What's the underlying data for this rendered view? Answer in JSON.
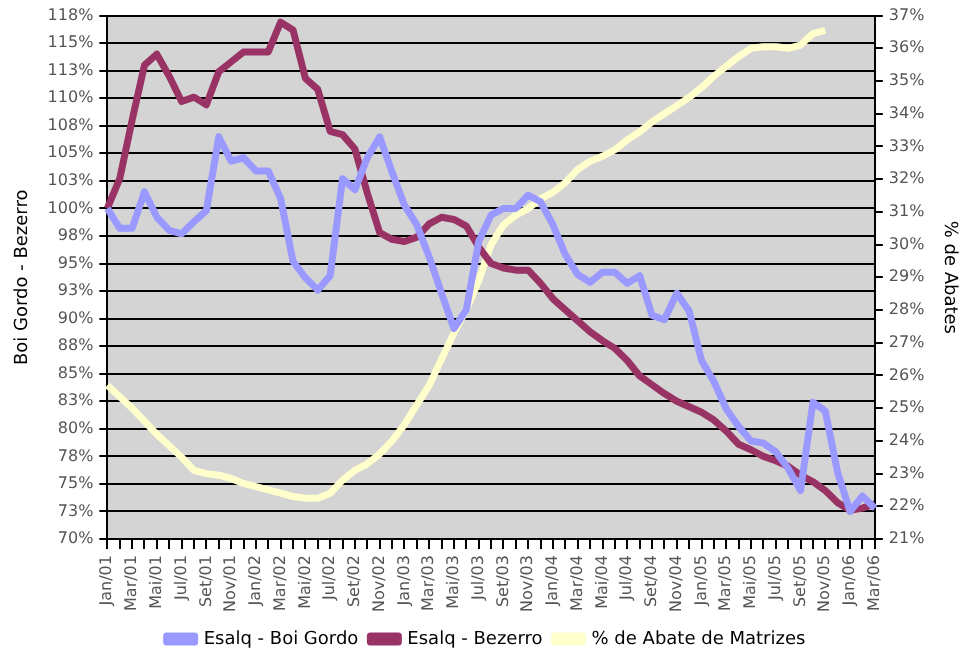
{
  "chart_data": {
    "type": "line",
    "ylabel": "Boi Gordo - Bezerro",
    "y2label": "% de Abates",
    "legend": "bottom",
    "grid": "y",
    "marker": "none",
    "line_style": "solid",
    "categories": [
      "Jan/01",
      null,
      "Mar/01",
      null,
      "Mai/01",
      null,
      "Jul/01",
      null,
      "Set/01",
      null,
      "Nov/01",
      null,
      "Jan/02",
      null,
      "Mar/02",
      null,
      "Mai/02",
      null,
      "Jul/02",
      null,
      "Set/02",
      null,
      "Nov/02",
      null,
      "Jan/03",
      null,
      "Mar/03",
      null,
      "Mai/03",
      null,
      "Jul/03",
      null,
      "Set/03",
      null,
      "Nov/03",
      null,
      "Jan/04",
      null,
      "Mar/04",
      null,
      "Mai/04",
      null,
      "Jul/04",
      null,
      "Set/04",
      null,
      "Nov/04",
      null,
      "Jan/05",
      null,
      "Mar/05",
      null,
      "Mai/05",
      null,
      "Jul/05",
      null,
      "Set/05",
      null,
      "Nov/05",
      null,
      "Jan/06",
      null,
      "Mar/06"
    ],
    "ylim": [
      70,
      117.5
    ],
    "yticks": [
      {
        "value": 70,
        "label": "70%"
      },
      {
        "value": 72.5,
        "label": "73%"
      },
      {
        "value": 75,
        "label": "75%"
      },
      {
        "value": 77.5,
        "label": "78%"
      },
      {
        "value": 80,
        "label": "80%"
      },
      {
        "value": 82.5,
        "label": "83%"
      },
      {
        "value": 85,
        "label": "85%"
      },
      {
        "value": 87.5,
        "label": "88%"
      },
      {
        "value": 90,
        "label": "90%"
      },
      {
        "value": 92.5,
        "label": "93%"
      },
      {
        "value": 95,
        "label": "95%"
      },
      {
        "value": 97.5,
        "label": "98%"
      },
      {
        "value": 100,
        "label": "100%"
      },
      {
        "value": 102.5,
        "label": "103%"
      },
      {
        "value": 105,
        "label": "105%"
      },
      {
        "value": 107.5,
        "label": "108%"
      },
      {
        "value": 110,
        "label": "110%"
      },
      {
        "value": 112.5,
        "label": "113%"
      },
      {
        "value": 115,
        "label": "115%"
      },
      {
        "value": 117.5,
        "label": "118%"
      }
    ],
    "y2lim": [
      21,
      37
    ],
    "y2ticks": [
      {
        "value": 21,
        "label": "21%"
      },
      {
        "value": 22,
        "label": "22%"
      },
      {
        "value": 23,
        "label": "23%"
      },
      {
        "value": 24,
        "label": "24%"
      },
      {
        "value": 25,
        "label": "25%"
      },
      {
        "value": 26,
        "label": "26%"
      },
      {
        "value": 27,
        "label": "27%"
      },
      {
        "value": 28,
        "label": "28%"
      },
      {
        "value": 29,
        "label": "29%"
      },
      {
        "value": 30,
        "label": "30%"
      },
      {
        "value": 31,
        "label": "31%"
      },
      {
        "value": 32,
        "label": "32%"
      },
      {
        "value": 33,
        "label": "33%"
      },
      {
        "value": 34,
        "label": "34%"
      },
      {
        "value": 35,
        "label": "35%"
      },
      {
        "value": 36,
        "label": "36%"
      },
      {
        "value": 37,
        "label": "37%"
      }
    ],
    "series": [
      {
        "name": "Esalq - Boi Gordo",
        "color": "#9999ff",
        "values": [
          100,
          98.2,
          98.2,
          101.5,
          99.2,
          98,
          97.7,
          98.8,
          99.8,
          106.5,
          104.3,
          104.6,
          103.4,
          103.4,
          100.9,
          95.2,
          93.7,
          92.6,
          93.9,
          102.7,
          101.7,
          104.6,
          106.5,
          103.3,
          100.3,
          98.5,
          95.6,
          92.3,
          89.1,
          90.8,
          97,
          99.4,
          100,
          100,
          101.2,
          100.6,
          98.5,
          95.8,
          94,
          93.3,
          94.2,
          94.2,
          93.2,
          93.9,
          90.3,
          89.9,
          92.3,
          90.7,
          86.2,
          84.3,
          81.8,
          80.2,
          78.9,
          78.7,
          77.9,
          76.4,
          74.4,
          82.4,
          81.6,
          76,
          72.5,
          73.9,
          72.8
        ]
      },
      {
        "name": "Esalq - Bezerro",
        "color": "#993366",
        "values": [
          100,
          102.7,
          108,
          113,
          114,
          112,
          109.7,
          110.1,
          109.4,
          112.4,
          113.3,
          114.2,
          114.2,
          114.2,
          116.9,
          116.2,
          111.8,
          110.8,
          107,
          106.7,
          105.4,
          101.4,
          97.8,
          97.2,
          97,
          97.4,
          98.6,
          99.2,
          99,
          98.4,
          96.5,
          95,
          94.6,
          94.4,
          94.4,
          93.2,
          91.8,
          90.8,
          89.8,
          88.8,
          88,
          87.3,
          86.2,
          84.8,
          84,
          83.2,
          82.5,
          82,
          81.5,
          80.8,
          79.8,
          78.6,
          78.1,
          77.5,
          77.1,
          76.6,
          75.8,
          75.2,
          74.4,
          73.3,
          72.6,
          72.8,
          73.2
        ]
      },
      {
        "name": "% de Abate de Matrizes",
        "color": "#ffffcc",
        "axis": "y2",
        "values": [
          25.7,
          25.35,
          25,
          24.6,
          24.2,
          23.85,
          23.5,
          23.1,
          23,
          22.95,
          22.85,
          22.7,
          22.6,
          22.5,
          22.4,
          22.3,
          22.25,
          22.25,
          22.4,
          22.8,
          23.1,
          23.3,
          23.6,
          24,
          24.5,
          25.1,
          25.7,
          26.5,
          27.3,
          28,
          28.9,
          30,
          30.6,
          30.9,
          31.1,
          31.4,
          31.6,
          31.9,
          32.3,
          32.55,
          32.7,
          32.9,
          33.2,
          33.45,
          33.75,
          34,
          34.25,
          34.5,
          34.8,
          35.15,
          35.45,
          35.75,
          36,
          36.05,
          36.05,
          36,
          36.1,
          36.45,
          36.55,
          null,
          null,
          null,
          null
        ]
      }
    ]
  }
}
